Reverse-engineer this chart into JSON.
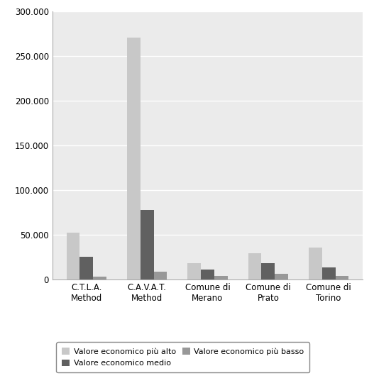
{
  "categories": [
    "C.T.L.A.\nMethod",
    "C.A.V.A.T.\nMethod",
    "Comune di\nMerano",
    "Comune di\nPrato",
    "Comune di\nTorino"
  ],
  "series_order": [
    "piu_alto",
    "medio",
    "piu_basso"
  ],
  "series": {
    "piu_alto": [
      52000,
      271000,
      18000,
      29000,
      36000
    ],
    "medio": [
      25000,
      78000,
      11000,
      18000,
      13000
    ],
    "piu_basso": [
      3000,
      9000,
      3500,
      6000,
      4000
    ]
  },
  "series_colors": {
    "piu_alto": "#c8c8c8",
    "medio": "#606060",
    "piu_basso": "#989898"
  },
  "legend_labels": {
    "piu_alto": "Valore economico più alto",
    "medio": "Valore economico medio",
    "piu_basso": "Valore economico più basso"
  },
  "ylim": [
    0,
    300000
  ],
  "yticks": [
    0,
    50000,
    100000,
    150000,
    200000,
    250000,
    300000
  ],
  "fig_background": "#ffffff",
  "plot_background": "#ebebeb",
  "bar_width": 0.22,
  "grid_color": "#ffffff",
  "border_color": "#aaaaaa"
}
